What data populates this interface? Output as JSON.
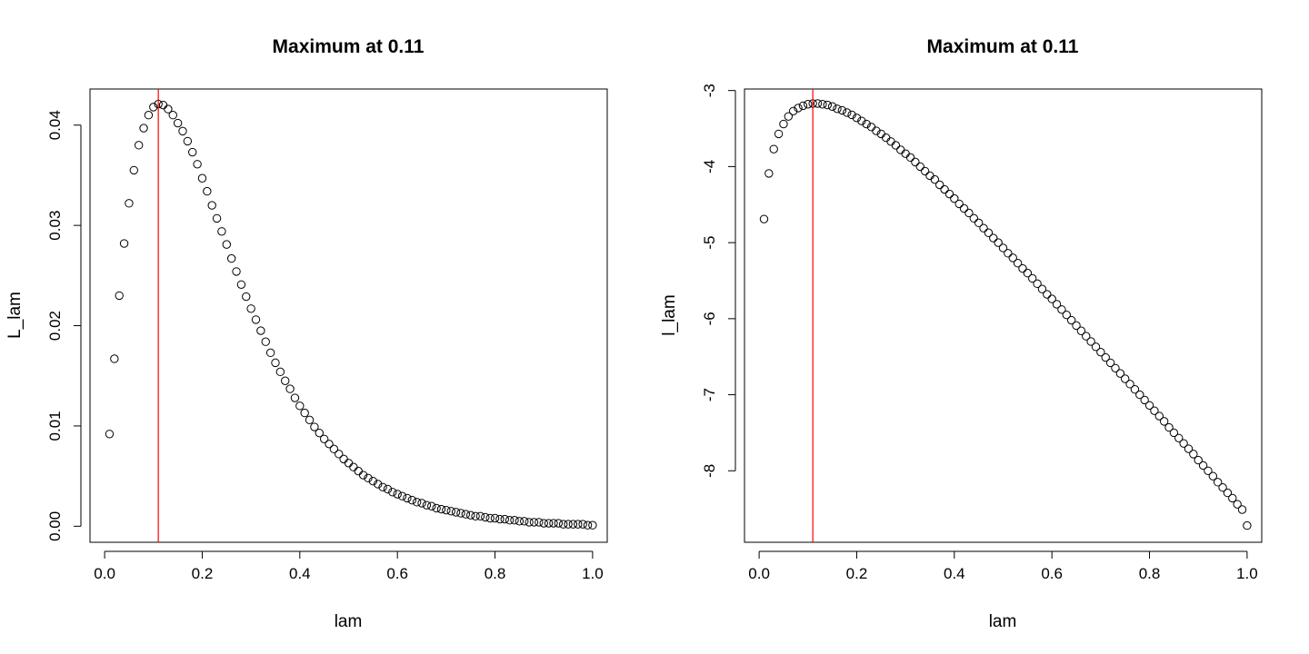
{
  "chart_data": [
    {
      "type": "scatter",
      "title": "Maximum at 0.11",
      "xlabel": "lam",
      "ylabel": "L_lam",
      "xlim": [
        -0.03,
        1.03
      ],
      "ylim": [
        -0.0016,
        0.0436
      ],
      "xticks": [
        0.0,
        0.2,
        0.4,
        0.6,
        0.8,
        1.0
      ],
      "xtick_labels": [
        "0.0",
        "0.2",
        "0.4",
        "0.6",
        "0.8",
        "1.0"
      ],
      "yticks": [
        0.0,
        0.01,
        0.02,
        0.03,
        0.04
      ],
      "ytick_labels": [
        "0.00",
        "0.01",
        "0.02",
        "0.03",
        "0.04"
      ],
      "vline": {
        "x": 0.11,
        "color": "#ff0000"
      },
      "x": [
        0.01,
        0.02,
        0.03,
        0.04,
        0.05,
        0.06,
        0.07,
        0.08,
        0.09,
        0.1,
        0.11,
        0.12,
        0.13,
        0.14,
        0.15,
        0.16,
        0.17,
        0.18,
        0.19,
        0.2,
        0.21,
        0.22,
        0.23,
        0.24,
        0.25,
        0.26,
        0.27,
        0.28,
        0.29,
        0.3,
        0.31,
        0.32,
        0.33,
        0.34,
        0.35,
        0.36,
        0.37,
        0.38,
        0.39,
        0.4,
        0.41,
        0.42,
        0.43,
        0.44,
        0.45,
        0.46,
        0.47,
        0.48,
        0.49,
        0.5,
        0.51,
        0.52,
        0.53,
        0.54,
        0.55,
        0.56,
        0.57,
        0.58,
        0.59,
        0.6,
        0.61,
        0.62,
        0.63,
        0.64,
        0.65,
        0.66,
        0.67,
        0.68,
        0.69,
        0.7,
        0.71,
        0.72,
        0.73,
        0.74,
        0.75,
        0.76,
        0.77,
        0.78,
        0.79,
        0.8,
        0.81,
        0.82,
        0.83,
        0.84,
        0.85,
        0.86,
        0.87,
        0.88,
        0.89,
        0.9,
        0.91,
        0.92,
        0.93,
        0.94,
        0.95,
        0.96,
        0.97,
        0.98,
        0.99,
        1.0
      ],
      "y": [
        0.0092,
        0.0167,
        0.023,
        0.0282,
        0.0322,
        0.0355,
        0.038,
        0.0397,
        0.041,
        0.0418,
        0.0421,
        0.042,
        0.0416,
        0.041,
        0.0402,
        0.0394,
        0.0384,
        0.0373,
        0.0361,
        0.0347,
        0.0334,
        0.032,
        0.0307,
        0.0294,
        0.0281,
        0.0267,
        0.0254,
        0.0241,
        0.0229,
        0.0217,
        0.0206,
        0.0195,
        0.0184,
        0.0173,
        0.0163,
        0.0154,
        0.0145,
        0.0137,
        0.0128,
        0.012,
        0.0113,
        0.0106,
        0.0099,
        0.0093,
        0.0087,
        0.0082,
        0.0077,
        0.0072,
        0.0067,
        0.0063,
        0.0059,
        0.0055,
        0.0051,
        0.0048,
        0.0045,
        0.0042,
        0.0039,
        0.0037,
        0.0034,
        0.0032,
        0.003,
        0.0028,
        0.0026,
        0.0024,
        0.0023,
        0.0021,
        0.002,
        0.0018,
        0.0017,
        0.0016,
        0.0015,
        0.0014,
        0.0013,
        0.0012,
        0.0011,
        0.001,
        0.001,
        0.0009,
        0.0008,
        0.0008,
        0.0007,
        0.0007,
        0.0006,
        0.0006,
        0.0005,
        0.0005,
        0.0004,
        0.0004,
        0.0004,
        0.0003,
        0.0003,
        0.0003,
        0.0003,
        0.0002,
        0.0002,
        0.0002,
        0.0002,
        0.0002,
        0.0001,
        0.0001
      ]
    },
    {
      "type": "scatter",
      "title": "Maximum at 0.11",
      "xlabel": "lam",
      "ylabel": "l_lam",
      "xlim": [
        -0.03,
        1.03
      ],
      "ylim": [
        -8.94,
        -2.98
      ],
      "xticks": [
        0.0,
        0.2,
        0.4,
        0.6,
        0.8,
        1.0
      ],
      "xtick_labels": [
        "0.0",
        "0.2",
        "0.4",
        "0.6",
        "0.8",
        "1.0"
      ],
      "yticks": [
        -8,
        -7,
        -6,
        -5,
        -4,
        -3
      ],
      "ytick_labels": [
        "-8",
        "-7",
        "-6",
        "-5",
        "-4",
        "-3"
      ],
      "vline": {
        "x": 0.11,
        "color": "#ff0000"
      },
      "x": [
        0.01,
        0.02,
        0.03,
        0.04,
        0.05,
        0.06,
        0.07,
        0.08,
        0.09,
        0.1,
        0.11,
        0.12,
        0.13,
        0.14,
        0.15,
        0.16,
        0.17,
        0.18,
        0.19,
        0.2,
        0.21,
        0.22,
        0.23,
        0.24,
        0.25,
        0.26,
        0.27,
        0.28,
        0.29,
        0.3,
        0.31,
        0.32,
        0.33,
        0.34,
        0.35,
        0.36,
        0.37,
        0.38,
        0.39,
        0.4,
        0.41,
        0.42,
        0.43,
        0.44,
        0.45,
        0.46,
        0.47,
        0.48,
        0.49,
        0.5,
        0.51,
        0.52,
        0.53,
        0.54,
        0.55,
        0.56,
        0.57,
        0.58,
        0.59,
        0.6,
        0.61,
        0.62,
        0.63,
        0.64,
        0.65,
        0.66,
        0.67,
        0.68,
        0.69,
        0.7,
        0.71,
        0.72,
        0.73,
        0.74,
        0.75,
        0.76,
        0.77,
        0.78,
        0.79,
        0.8,
        0.81,
        0.82,
        0.83,
        0.84,
        0.85,
        0.86,
        0.87,
        0.88,
        0.89,
        0.9,
        0.91,
        0.92,
        0.93,
        0.94,
        0.95,
        0.96,
        0.97,
        0.98,
        0.99,
        1.0
      ],
      "y": [
        -4.69,
        -4.09,
        -3.77,
        -3.57,
        -3.44,
        -3.34,
        -3.27,
        -3.23,
        -3.2,
        -3.18,
        -3.17,
        -3.17,
        -3.18,
        -3.19,
        -3.21,
        -3.24,
        -3.26,
        -3.29,
        -3.32,
        -3.36,
        -3.4,
        -3.44,
        -3.48,
        -3.53,
        -3.57,
        -3.62,
        -3.67,
        -3.72,
        -3.78,
        -3.83,
        -3.88,
        -3.94,
        -4.0,
        -4.06,
        -4.12,
        -4.17,
        -4.24,
        -4.3,
        -4.36,
        -4.42,
        -4.49,
        -4.55,
        -4.61,
        -4.68,
        -4.74,
        -4.81,
        -4.87,
        -4.94,
        -5.0,
        -5.07,
        -5.14,
        -5.2,
        -5.27,
        -5.34,
        -5.4,
        -5.47,
        -5.54,
        -5.61,
        -5.68,
        -5.74,
        -5.81,
        -5.88,
        -5.95,
        -6.02,
        -6.09,
        -6.16,
        -6.23,
        -6.3,
        -6.37,
        -6.44,
        -6.51,
        -6.58,
        -6.65,
        -6.72,
        -6.79,
        -6.86,
        -6.93,
        -7.0,
        -7.07,
        -7.14,
        -7.21,
        -7.28,
        -7.35,
        -7.43,
        -7.5,
        -7.57,
        -7.64,
        -7.71,
        -7.78,
        -7.86,
        -7.93,
        -8.0,
        -8.07,
        -8.15,
        -8.22,
        -8.29,
        -8.36,
        -8.44,
        -8.51,
        -8.72
      ]
    }
  ]
}
